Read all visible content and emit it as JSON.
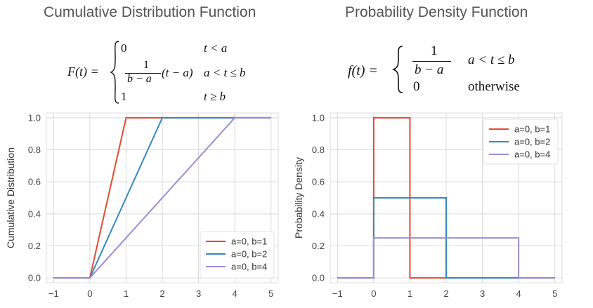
{
  "left_title": "Cumulative Distribution Function",
  "right_title": "Probability Density Function",
  "cdf_formula": {
    "lhs": "F(t) =",
    "case1_value": "0",
    "case1_cond": "t < a",
    "case2_num": "1",
    "case2_den": "b − a",
    "case2_tail": "(t − a)",
    "case2_cond": "a < t ≤ b",
    "case3_value": "1",
    "case3_cond": "t ≥ b"
  },
  "pdf_formula": {
    "lhs": "f(t) =",
    "case1_num": "1",
    "case1_den": "b − a",
    "case1_cond": "a < t ≤ b",
    "case2_value": "0",
    "case2_cond": "otherwise"
  },
  "colors": {
    "a=0, b=1": "#e24a33",
    "a=0, b=2": "#348abd",
    "a=0, b=4": "#988ed5"
  },
  "chart_data": [
    {
      "type": "line",
      "title": "",
      "xlabel": "",
      "ylabel": "Cumulative Distribution",
      "xlim": [
        -1.2,
        5.2
      ],
      "ylim": [
        -0.03,
        1.03
      ],
      "xticks": [
        "−1",
        "0",
        "1",
        "2",
        "3",
        "4",
        "5"
      ],
      "yticks": [
        "0.0",
        "0.2",
        "0.4",
        "0.6",
        "0.8",
        "1.0"
      ],
      "grid": true,
      "legend_position": "bottom-right",
      "series": [
        {
          "name": "a=0, b=1",
          "x": [
            -1,
            0,
            1,
            5
          ],
          "y": [
            0,
            0,
            1,
            1
          ]
        },
        {
          "name": "a=0, b=2",
          "x": [
            -1,
            0,
            2,
            5
          ],
          "y": [
            0,
            0,
            1,
            1
          ]
        },
        {
          "name": "a=0, b=4",
          "x": [
            -1,
            0,
            4,
            5
          ],
          "y": [
            0,
            0,
            1,
            1
          ]
        }
      ]
    },
    {
      "type": "line",
      "title": "",
      "xlabel": "",
      "ylabel": "Probability Density",
      "xlim": [
        -1.2,
        5.2
      ],
      "ylim": [
        -0.03,
        1.03
      ],
      "xticks": [
        "−1",
        "0",
        "1",
        "2",
        "3",
        "4",
        "5"
      ],
      "yticks": [
        "0.0",
        "0.2",
        "0.4",
        "0.6",
        "0.8",
        "1.0"
      ],
      "grid": true,
      "legend_position": "top-right",
      "series": [
        {
          "name": "a=0, b=1",
          "x": [
            -1,
            0,
            0,
            1,
            1,
            5
          ],
          "y": [
            0,
            0,
            1,
            1,
            0,
            0
          ]
        },
        {
          "name": "a=0, b=2",
          "x": [
            -1,
            0,
            0,
            2,
            2,
            5
          ],
          "y": [
            0,
            0,
            0.5,
            0.5,
            0,
            0
          ]
        },
        {
          "name": "a=0, b=4",
          "x": [
            -1,
            0,
            0,
            4,
            4,
            5
          ],
          "y": [
            0,
            0,
            0.25,
            0.25,
            0,
            0
          ]
        }
      ]
    }
  ]
}
